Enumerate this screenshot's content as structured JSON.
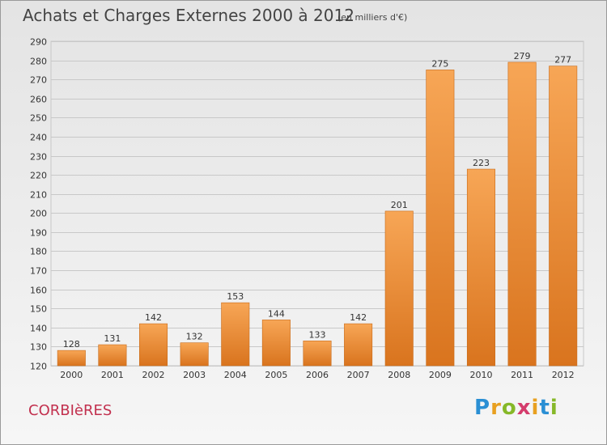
{
  "title": "Achats et Charges Externes 2000 à 2012",
  "subtitle": "(en milliers d'€)",
  "commune": "CORBIèRES",
  "logo": {
    "text": "Proxiti",
    "letters": [
      {
        "ch": "P",
        "color": "#2a8fd4"
      },
      {
        "ch": "r",
        "color": "#e8a020"
      },
      {
        "ch": "o",
        "color": "#86b828"
      },
      {
        "ch": "x",
        "color": "#d43c6c"
      },
      {
        "ch": "i",
        "color": "#e8a020"
      },
      {
        "ch": "t",
        "color": "#2a8fd4"
      },
      {
        "ch": "i",
        "color": "#86b828"
      }
    ]
  },
  "colors": {
    "bar_top": "#f7a656",
    "bar_bottom": "#d9741e",
    "bar_stroke": "#c86a18",
    "grid": "#c8c8c8",
    "axis_text": "#333333"
  },
  "chart_data": {
    "type": "bar",
    "categories": [
      "2000",
      "2001",
      "2002",
      "2003",
      "2004",
      "2005",
      "2006",
      "2007",
      "2008",
      "2009",
      "2010",
      "2011",
      "2012"
    ],
    "values": [
      128,
      131,
      142,
      132,
      153,
      144,
      133,
      142,
      201,
      275,
      223,
      279,
      277
    ],
    "ylim": [
      120,
      290
    ],
    "ytick_step": 10,
    "grid": true,
    "data_labels": true
  }
}
